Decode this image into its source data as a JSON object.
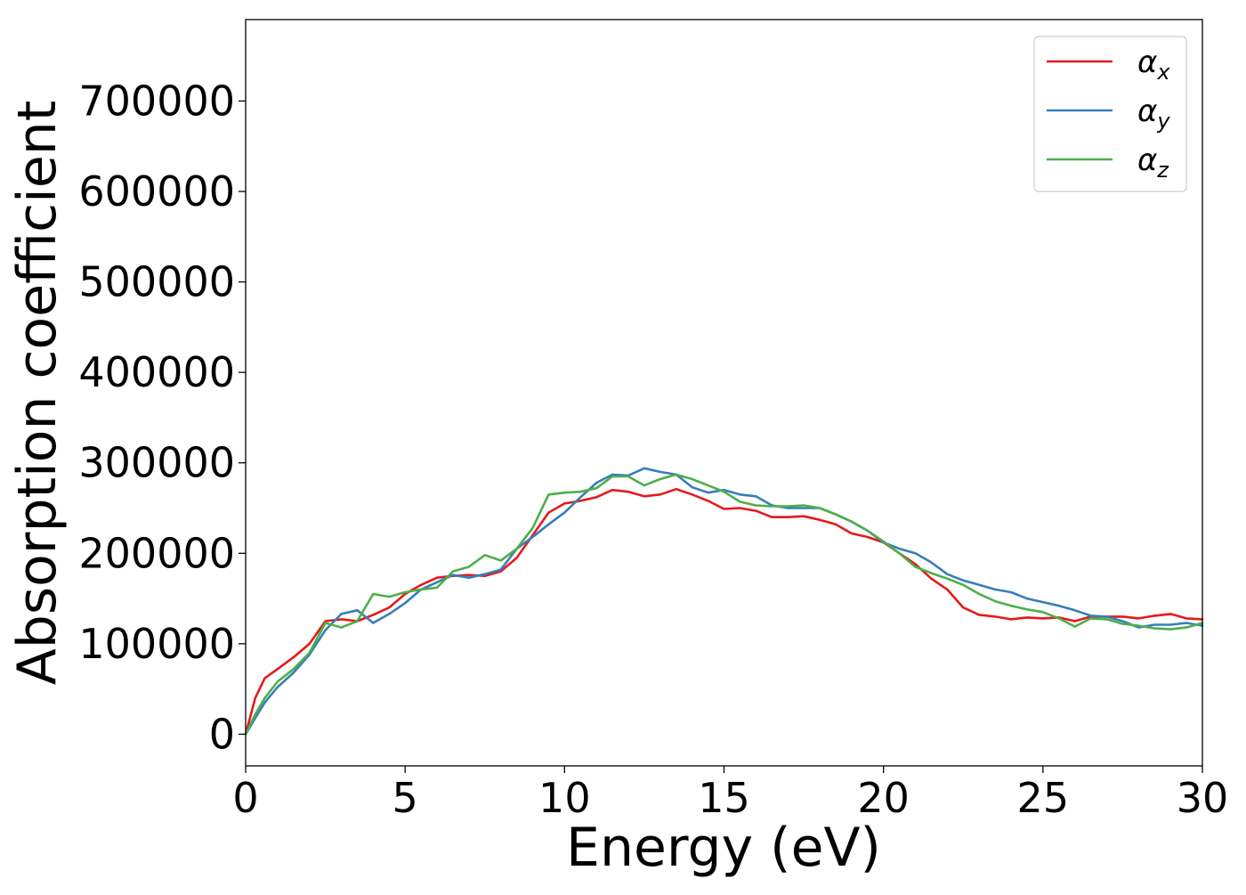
{
  "chart_data": {
    "type": "line",
    "title": "",
    "xlabel": "Energy (eV)",
    "ylabel": "Absorption coefficient",
    "xlim": [
      0,
      30
    ],
    "ylim": [
      -35000,
      790000
    ],
    "xticks": [
      0,
      5,
      10,
      15,
      20,
      25,
      30
    ],
    "yticks": [
      0,
      100000,
      200000,
      300000,
      400000,
      500000,
      600000,
      700000
    ],
    "grid": false,
    "legend_position": "top-right",
    "series": [
      {
        "name": "αx",
        "legend_symbol": "α",
        "legend_subscript": "x",
        "color": "#e41a1c",
        "x": [
          0,
          0.3,
          0.6,
          1.0,
          1.5,
          2.0,
          2.5,
          3.0,
          3.5,
          4.0,
          4.5,
          5.0,
          5.5,
          6.0,
          6.5,
          7.0,
          7.5,
          8.0,
          8.5,
          9.0,
          9.5,
          10.0,
          10.5,
          11.0,
          11.5,
          12.0,
          12.5,
          13.0,
          13.5,
          14.0,
          14.5,
          15.0,
          15.5,
          16.0,
          16.5,
          17.0,
          17.5,
          18.0,
          18.5,
          19.0,
          19.5,
          20.0,
          20.5,
          21.0,
          21.5,
          22.0,
          22.5,
          23.0,
          23.5,
          24.0,
          24.5,
          25.0,
          25.5,
          26.0,
          26.5,
          27.0,
          27.5,
          28.0,
          28.5,
          29.0,
          29.5,
          30.0
        ],
        "y": [
          0,
          40000,
          62000,
          72000,
          85000,
          100000,
          125000,
          127000,
          125000,
          132000,
          140000,
          155000,
          165000,
          173000,
          175000,
          176000,
          175000,
          180000,
          195000,
          220000,
          245000,
          255000,
          258000,
          262000,
          270000,
          268000,
          263000,
          265000,
          271000,
          265000,
          258000,
          249000,
          250000,
          247000,
          240000,
          240000,
          241000,
          237000,
          232000,
          222000,
          218000,
          212000,
          200000,
          188000,
          172000,
          160000,
          140000,
          132000,
          130000,
          127000,
          129000,
          128000,
          129000,
          125000,
          130000,
          130000,
          130000,
          128000,
          131000,
          133000,
          128000,
          127000
        ]
      },
      {
        "name": "αy",
        "legend_symbol": "α",
        "legend_subscript": "y",
        "color": "#377eb8",
        "x": [
          0,
          0.3,
          0.6,
          1.0,
          1.5,
          2.0,
          2.5,
          3.0,
          3.5,
          4.0,
          4.5,
          5.0,
          5.5,
          6.0,
          6.5,
          7.0,
          7.5,
          8.0,
          8.5,
          9.0,
          9.5,
          10.0,
          10.5,
          11.0,
          11.5,
          12.0,
          12.5,
          13.0,
          13.5,
          14.0,
          14.5,
          15.0,
          15.5,
          16.0,
          16.5,
          17.0,
          17.5,
          18.0,
          18.5,
          19.0,
          19.5,
          20.0,
          20.5,
          21.0,
          21.5,
          22.0,
          22.5,
          23.0,
          23.5,
          24.0,
          24.5,
          25.0,
          25.5,
          26.0,
          26.5,
          27.0,
          27.5,
          28.0,
          28.5,
          29.0,
          29.5,
          30.0
        ],
        "y": [
          0,
          18000,
          35000,
          52000,
          68000,
          88000,
          115000,
          133000,
          137000,
          123000,
          133000,
          145000,
          160000,
          168000,
          176000,
          173000,
          177000,
          182000,
          205000,
          218000,
          232000,
          245000,
          262000,
          278000,
          287000,
          286000,
          294000,
          290000,
          287000,
          273000,
          267000,
          270000,
          265000,
          263000,
          253000,
          250000,
          250000,
          250000,
          243000,
          235000,
          225000,
          212000,
          205000,
          200000,
          190000,
          177000,
          170000,
          165000,
          160000,
          157000,
          150000,
          146000,
          142000,
          137000,
          131000,
          130000,
          125000,
          118000,
          121000,
          121000,
          123000,
          120000
        ]
      },
      {
        "name": "αz",
        "legend_symbol": "α",
        "legend_subscript": "z",
        "color": "#4daf4a",
        "x": [
          0,
          0.3,
          0.6,
          1.0,
          1.5,
          2.0,
          2.5,
          3.0,
          3.5,
          4.0,
          4.5,
          5.0,
          5.5,
          6.0,
          6.5,
          7.0,
          7.5,
          8.0,
          8.5,
          9.0,
          9.5,
          10.0,
          10.5,
          11.0,
          11.5,
          12.0,
          12.5,
          13.0,
          13.5,
          14.0,
          14.5,
          15.0,
          15.5,
          16.0,
          16.5,
          17.0,
          17.5,
          18.0,
          18.5,
          19.0,
          19.5,
          20.0,
          20.5,
          21.0,
          21.5,
          22.0,
          22.5,
          23.0,
          23.5,
          24.0,
          24.5,
          25.0,
          25.5,
          26.0,
          26.5,
          27.0,
          27.5,
          28.0,
          28.5,
          29.0,
          29.5,
          30.0
        ],
        "y": [
          0,
          22000,
          40000,
          58000,
          72000,
          90000,
          123000,
          118000,
          125000,
          155000,
          152000,
          157000,
          160000,
          162000,
          180000,
          185000,
          198000,
          192000,
          205000,
          228000,
          265000,
          267000,
          268000,
          272000,
          285000,
          285000,
          275000,
          282000,
          287000,
          282000,
          275000,
          268000,
          257000,
          253000,
          252000,
          252000,
          253000,
          250000,
          243000,
          235000,
          225000,
          213000,
          200000,
          185000,
          178000,
          172000,
          165000,
          155000,
          147000,
          142000,
          138000,
          135000,
          128000,
          119000,
          128000,
          127000,
          122000,
          120000,
          117000,
          116000,
          118000,
          123000
        ]
      }
    ]
  }
}
